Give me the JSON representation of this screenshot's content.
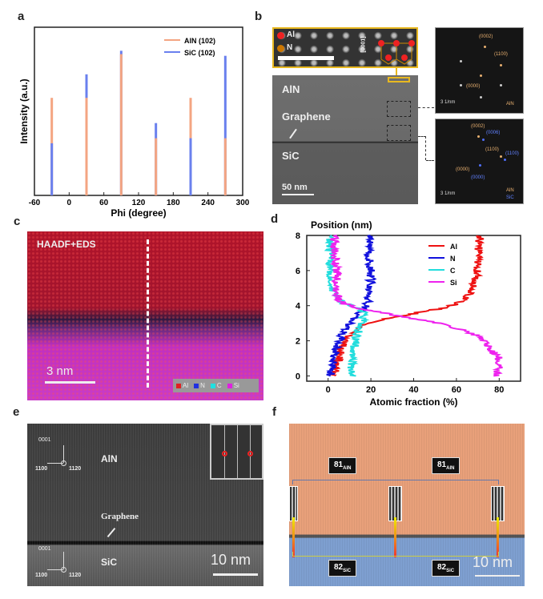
{
  "panels": {
    "a": {
      "label": "a"
    },
    "b": {
      "label": "b",
      "inset_legend": [
        "Al",
        "N"
      ],
      "inset_direction": "[0001]",
      "layer_top": "AlN",
      "interface": "Graphene",
      "layer_bottom": "SiC",
      "scale_bar": "50 nm",
      "diffraction_top": {
        "spots": [
          "(0002)",
          "(1100)",
          "(0000)"
        ],
        "scale": "3 1/nm",
        "legend": [
          "AlN"
        ]
      },
      "diffraction_bottom": {
        "spots_aln": [
          "(0002)",
          "(1100)",
          "(0000)"
        ],
        "spots_sic": [
          "(0006)",
          "(1100)",
          "(0000)"
        ],
        "scale": "3 1/nm",
        "legend": [
          "AlN",
          "SiC"
        ]
      }
    },
    "c": {
      "label": "c",
      "title": "HAADF+EDS",
      "scale_bar": "3 nm",
      "legend": [
        {
          "name": "Al",
          "color": "#e02020"
        },
        {
          "name": "N",
          "color": "#2030e0"
        },
        {
          "name": "C",
          "color": "#20e0e0"
        },
        {
          "name": "Si",
          "color": "#e020e0"
        }
      ]
    },
    "d": {
      "label": "d"
    },
    "e": {
      "label": "e",
      "axes": {
        "up": "0001",
        "left": "1100",
        "center": "1120"
      },
      "layer_top": "AlN",
      "interface": "Graphene",
      "layer_bottom": "SiC",
      "scale_bar": "10 nm"
    },
    "f": {
      "label": "f",
      "top_labels": [
        "81",
        "81"
      ],
      "top_sub": "AlN",
      "bottom_labels": [
        "82",
        "82"
      ],
      "bottom_sub": "SiC",
      "scale_bar": "10 nm",
      "colors": {
        "aln": "#e8a07a",
        "sic": "#7e9fd0"
      }
    }
  },
  "chart_data": [
    {
      "panel": "a",
      "type": "bar",
      "xlabel": "Phi (degree)",
      "ylabel": "Intensity (a.u.)",
      "xlim": [
        -60,
        300
      ],
      "ylim": [
        0,
        100
      ],
      "xticks": [
        -60,
        0,
        60,
        120,
        180,
        240,
        300
      ],
      "legend_position": "top-right",
      "x": [
        -30,
        30,
        90,
        150,
        210,
        270
      ],
      "series": [
        {
          "name": "AlN (102)",
          "color": "#f4a582",
          "values": [
            58,
            58,
            84,
            34,
            58,
            34
          ]
        },
        {
          "name": "SiC (102)",
          "color": "#6a80ee",
          "values": [
            31,
            72,
            86,
            43,
            34,
            83
          ]
        }
      ]
    },
    {
      "panel": "d",
      "type": "line",
      "xlabel": "Atomic fraction (%)",
      "ylabel": "Position (nm)",
      "xlim": [
        -10,
        90
      ],
      "ylim": [
        -0.3,
        8
      ],
      "xticks": [
        0,
        20,
        40,
        60,
        80
      ],
      "yticks": [
        0,
        2,
        4,
        6,
        8
      ],
      "legend_position": "top-right",
      "series": [
        {
          "name": "Al",
          "color": "#ee1111",
          "position": [
            0,
            0.5,
            1,
            1.5,
            2,
            2.5,
            3,
            3.3,
            3.6,
            3.9,
            4.2,
            4.6,
            5,
            6,
            7,
            8
          ],
          "fraction": [
            3,
            4,
            5,
            6,
            8,
            12,
            17,
            30,
            42,
            55,
            62,
            66,
            68,
            70,
            70,
            71
          ]
        },
        {
          "name": "N",
          "color": "#1111dd",
          "position": [
            0,
            0.5,
            1,
            1.5,
            2,
            2.5,
            3,
            3.5,
            4,
            4.5,
            5,
            6,
            7,
            8
          ],
          "fraction": [
            1,
            2,
            3,
            4,
            5,
            7,
            10,
            14,
            18,
            19,
            20,
            20,
            19,
            20
          ]
        },
        {
          "name": "C",
          "color": "#22dddd",
          "position": [
            0,
            0.5,
            1,
            1.5,
            2,
            2.5,
            3,
            3.5,
            3.8,
            4.2,
            4.6,
            5,
            6,
            7,
            8
          ],
          "fraction": [
            12,
            11,
            11,
            12,
            13,
            14,
            16,
            17,
            15,
            6,
            3,
            2,
            1,
            1,
            1
          ]
        },
        {
          "name": "Si",
          "color": "#ee22ee",
          "position": [
            0,
            0.5,
            1,
            1.5,
            2,
            2.5,
            3,
            3.3,
            3.6,
            3.9,
            4.2,
            4.7,
            5,
            6,
            7,
            8
          ],
          "fraction": [
            79,
            80,
            80,
            76,
            73,
            66,
            52,
            38,
            25,
            12,
            6,
            4,
            4,
            4,
            3,
            3
          ]
        }
      ]
    }
  ]
}
